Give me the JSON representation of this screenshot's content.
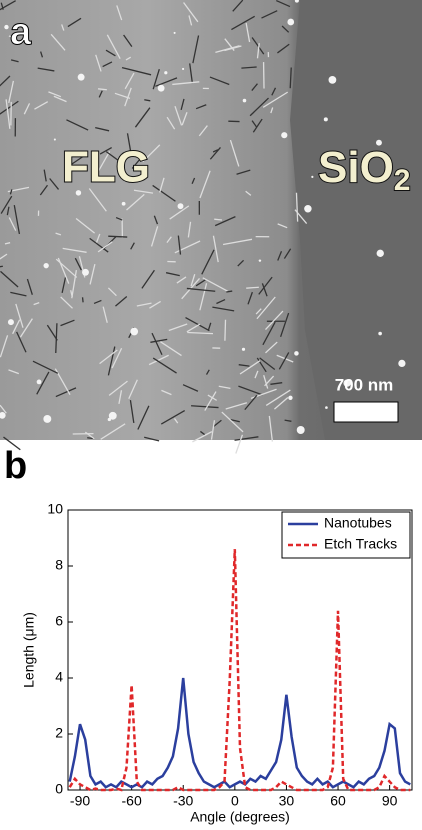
{
  "panel_a": {
    "label": "a",
    "left_region": "FLG",
    "right_region": "SiO",
    "right_region_subscript": "2",
    "scale_bar": "700 nm"
  },
  "chart_data": {
    "type": "line",
    "panel_label": "b",
    "x_label": "Angle (degrees)",
    "y_label": "Length (μm)",
    "x": [
      -96,
      -93,
      -90,
      -87,
      -84,
      -81,
      -78,
      -75,
      -72,
      -69,
      -66,
      -63,
      -60,
      -57,
      -54,
      -51,
      -48,
      -45,
      -42,
      -39,
      -36,
      -33,
      -30,
      -27,
      -24,
      -21,
      -18,
      -15,
      -12,
      -9,
      -6,
      -3,
      0,
      3,
      6,
      9,
      12,
      15,
      18,
      21,
      24,
      27,
      30,
      33,
      36,
      39,
      42,
      45,
      48,
      51,
      54,
      57,
      60,
      63,
      66,
      69,
      72,
      75,
      78,
      81,
      84,
      87,
      90,
      93,
      96,
      99,
      102
    ],
    "series": [
      {
        "name": "Nanotubes",
        "color": "#2b3f9e",
        "dash": false,
        "values": [
          0.3,
          1.2,
          2.35,
          1.8,
          0.5,
          0.2,
          0.3,
          0.1,
          0.2,
          0.1,
          0.3,
          0.2,
          0.1,
          0.2,
          0.1,
          0.3,
          0.2,
          0.4,
          0.5,
          0.8,
          1.2,
          2.2,
          4.0,
          2.0,
          1.0,
          0.6,
          0.3,
          0.2,
          0.1,
          0.2,
          0.3,
          0.1,
          0.2,
          0.3,
          0.2,
          0.4,
          0.3,
          0.5,
          0.4,
          0.7,
          1.0,
          1.8,
          3.4,
          1.9,
          0.8,
          0.5,
          0.3,
          0.2,
          0.4,
          0.2,
          0.3,
          0.1,
          0.2,
          0.3,
          0.2,
          0.1,
          0.3,
          0.2,
          0.4,
          0.5,
          0.8,
          1.4,
          2.35,
          2.2,
          0.6,
          0.3,
          0.2
        ]
      },
      {
        "name": "Etch Tracks",
        "color": "#e0282a",
        "dash": true,
        "values": [
          0.1,
          0.4,
          0.2,
          0.1,
          0,
          0.05,
          0,
          0,
          0,
          0.05,
          0,
          0.8,
          3.75,
          0.3,
          0,
          0,
          0,
          0,
          0,
          0,
          0,
          0.1,
          0,
          0,
          0,
          0,
          0,
          0,
          0,
          0.1,
          0.3,
          3.9,
          8.6,
          1.5,
          0.1,
          0,
          0,
          0,
          0,
          0,
          0.1,
          0.3,
          0.2,
          0.1,
          0,
          0,
          0,
          0,
          0,
          0,
          0.1,
          0.8,
          6.4,
          0.4,
          0,
          0,
          0,
          0,
          0,
          0,
          0.1,
          0.5,
          0.3,
          0.1,
          0,
          0,
          0
        ]
      }
    ],
    "xlim": [
      -97,
      103
    ],
    "xticks": [
      -90,
      -60,
      -30,
      0,
      30,
      60,
      90
    ],
    "ylim": [
      0,
      10
    ],
    "yticks": [
      0,
      2,
      4,
      6,
      8,
      10
    ],
    "legend": "top-right",
    "grid": false
  }
}
